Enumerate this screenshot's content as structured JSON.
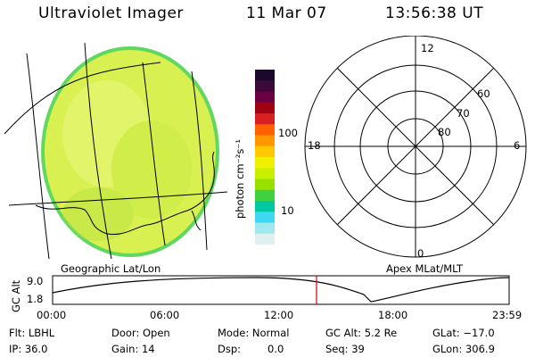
{
  "header": {
    "instrument": "Ultraviolet Imager",
    "date": "11 Mar 07",
    "time": "13:56:38 UT"
  },
  "colorbar": {
    "unit_label": "photon cm⁻²s⁻¹",
    "ticks": [
      "100",
      "10"
    ],
    "colors": [
      "#1a0a2a",
      "#3b0a3a",
      "#6a0040",
      "#a00010",
      "#d82020",
      "#ff6000",
      "#ff9800",
      "#ffc800",
      "#f0f000",
      "#c8f000",
      "#98e000",
      "#40d040",
      "#00c8a0",
      "#40d8f0",
      "#a0e8f0",
      "#e0f0f0"
    ]
  },
  "geo_panel": {
    "label": "Geographic Lat/Lon",
    "fill_color": "#d8f050",
    "edge_color": "#60d860"
  },
  "polar_panel": {
    "label": "Apex MLat/MLT",
    "mlt_labels": {
      "top": "12",
      "left": "18",
      "right": "6",
      "bottom": "0"
    },
    "lat_labels": [
      "60",
      "70",
      "80"
    ]
  },
  "altitude_plot": {
    "ylabel": "GC Alt",
    "yticks": [
      "9.0",
      "1.8"
    ],
    "xticks": [
      "00:00",
      "06:00",
      "12:00",
      "18:00",
      "23:59"
    ],
    "current_time_marker_color": "#e00000"
  },
  "status": {
    "flt": "Flt: LBHL",
    "door": "Door: Open",
    "mode": "Mode: Normal",
    "gc_alt": "GC Alt: 5.2 Re",
    "glat": "GLat: −17.0",
    "ip": "IP: 36.0",
    "gain": "Gain: 14",
    "dsp": "Dsp:",
    "dsp_val": "0.0",
    "seq": "Seq: 39",
    "glon": "GLon: 306.9"
  }
}
